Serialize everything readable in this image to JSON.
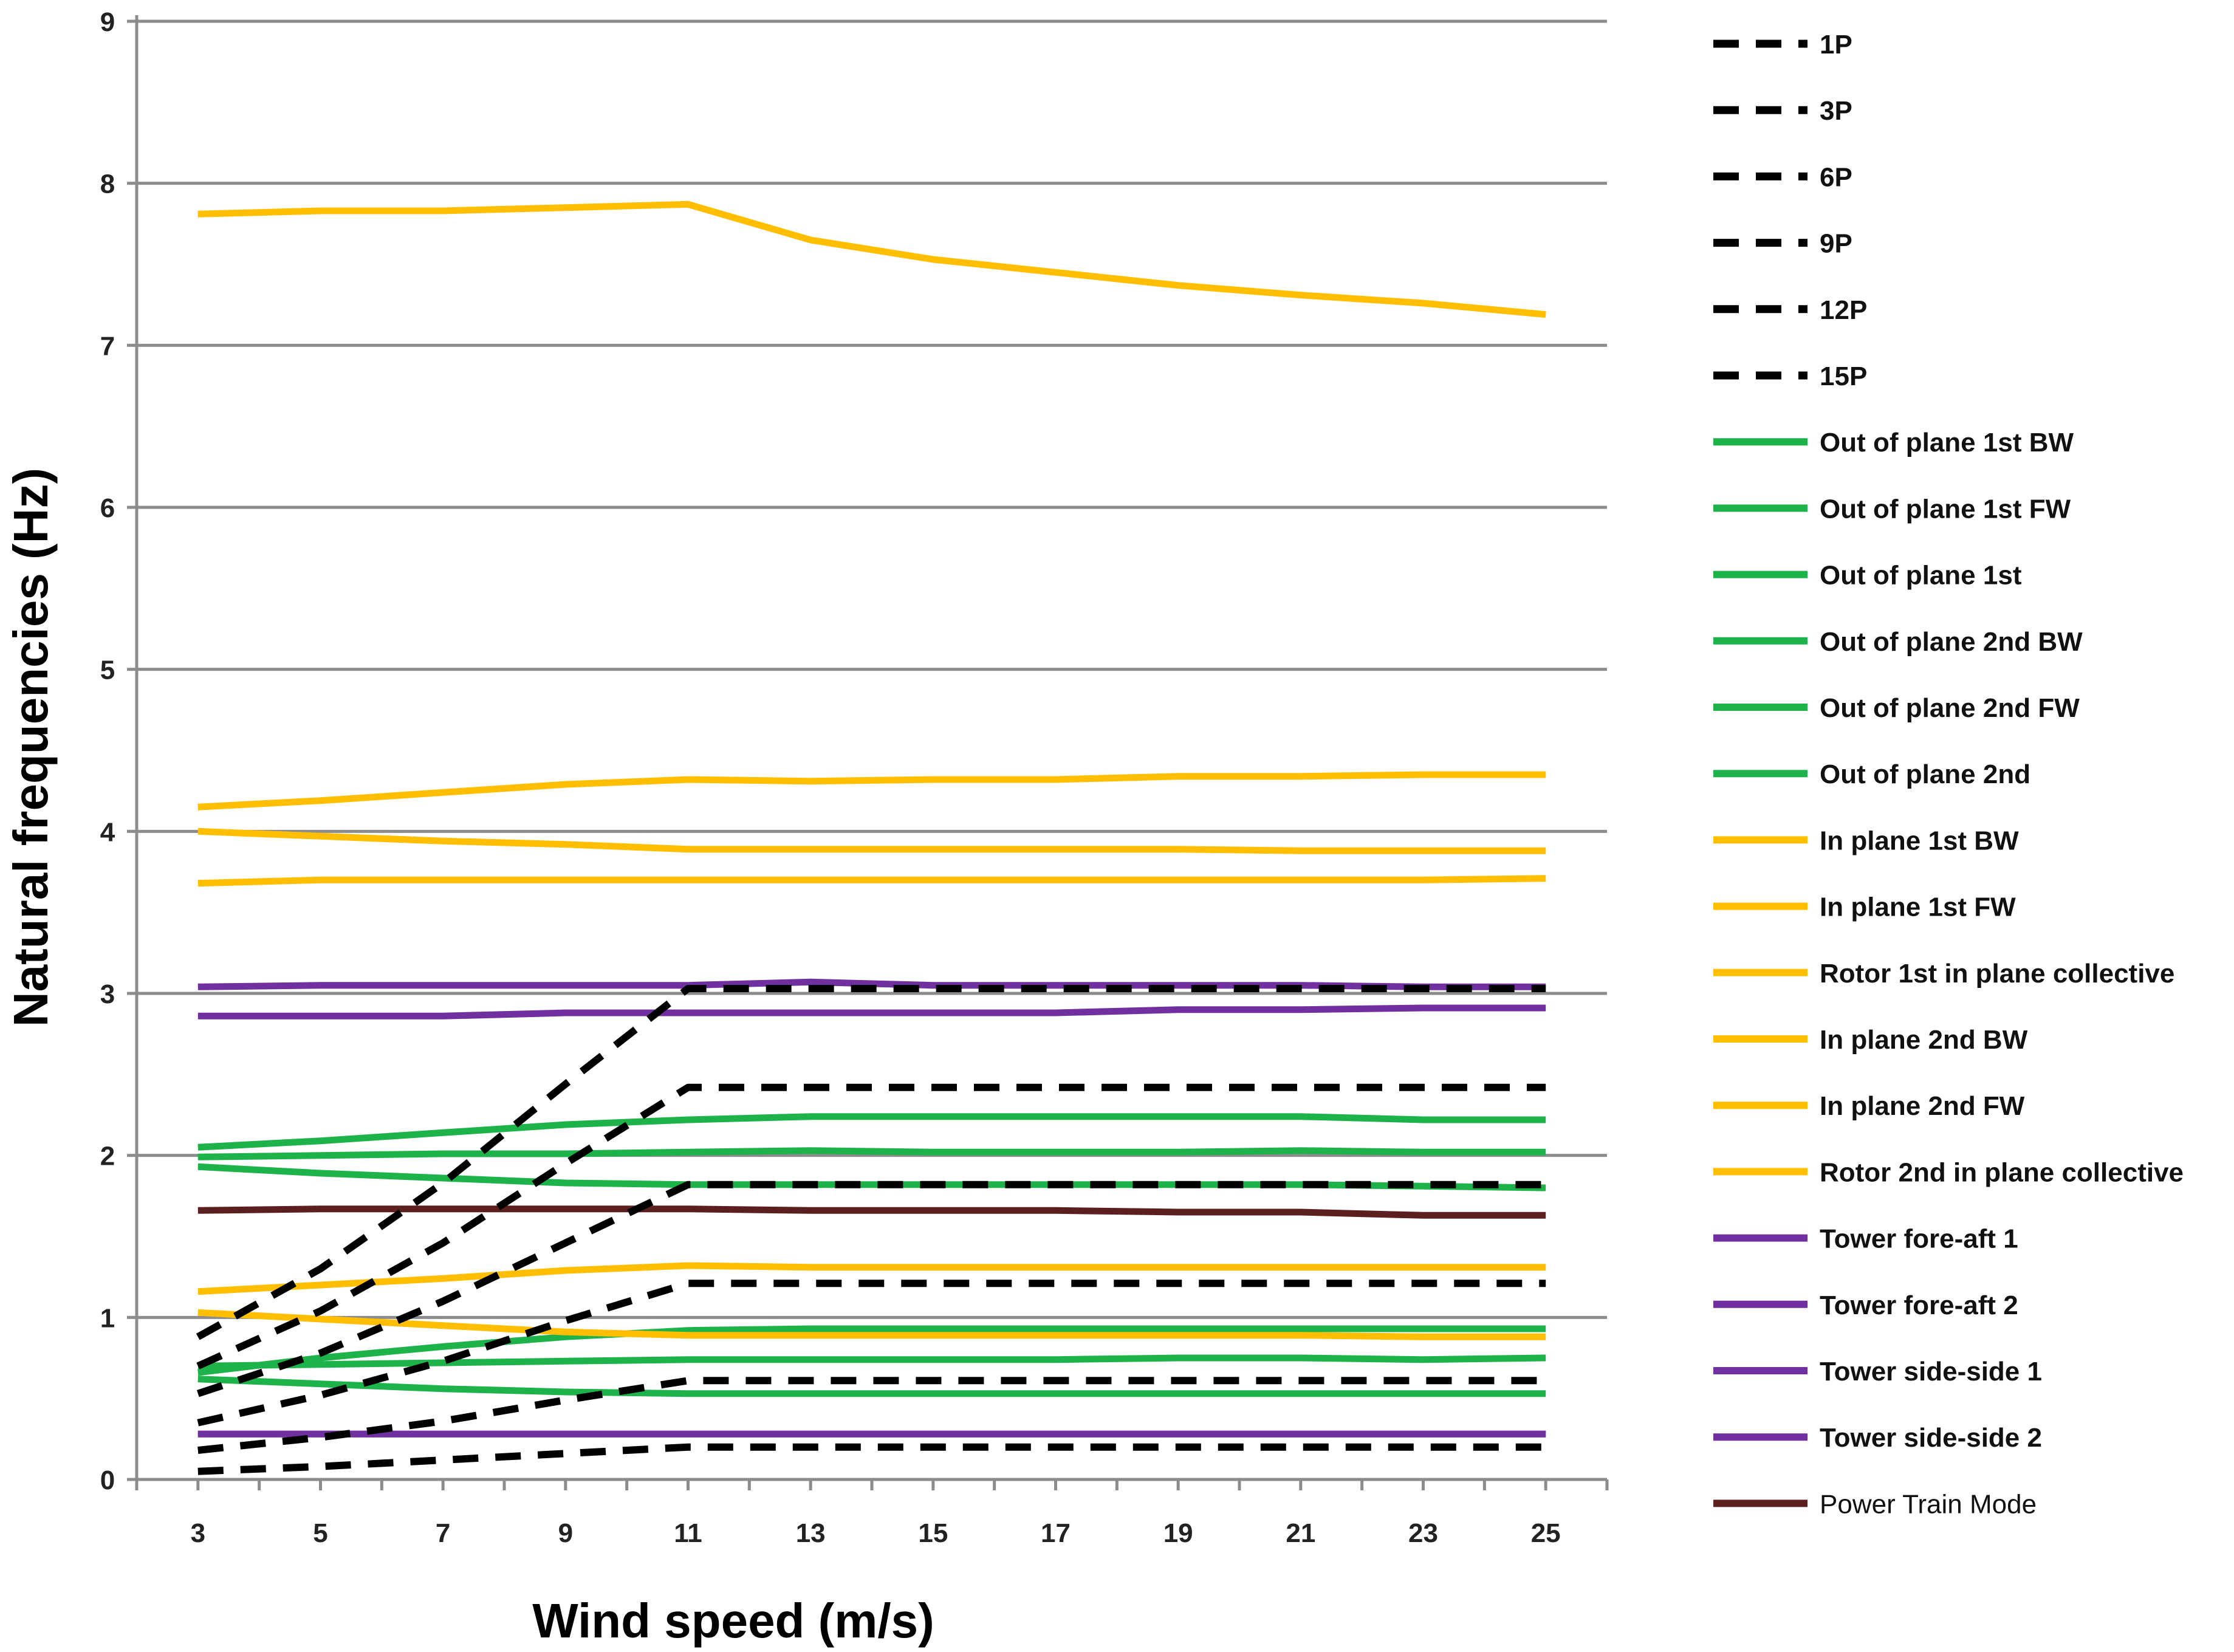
{
  "chart_data": {
    "type": "line",
    "title": "",
    "xlabel": "Wind speed (m/s)",
    "ylabel": "Natural frequencies (Hz)",
    "x": [
      3,
      5,
      7,
      9,
      11,
      13,
      15,
      17,
      19,
      21,
      23,
      25
    ],
    "x_ticks": [
      "3",
      "5",
      "7",
      "9",
      "11",
      "13",
      "15",
      "17",
      "19",
      "21",
      "23",
      "25"
    ],
    "ylim": [
      0,
      9
    ],
    "y_ticks": [
      "0",
      "1",
      "2",
      "3",
      "4",
      "5",
      "6",
      "7",
      "8",
      "9"
    ],
    "grid": "horizontal",
    "legend_position": "right",
    "series": [
      {
        "name": "1P",
        "color": "#000000",
        "dash": true,
        "values": [
          0.05,
          0.08,
          0.12,
          0.16,
          0.2,
          0.2,
          0.2,
          0.2,
          0.2,
          0.2,
          0.2,
          0.2
        ]
      },
      {
        "name": "3P",
        "color": "#000000",
        "dash": true,
        "values": [
          0.18,
          0.26,
          0.36,
          0.49,
          0.61,
          0.61,
          0.61,
          0.61,
          0.61,
          0.61,
          0.61,
          0.61
        ]
      },
      {
        "name": "6P",
        "color": "#000000",
        "dash": true,
        "values": [
          0.35,
          0.52,
          0.73,
          0.98,
          1.21,
          1.21,
          1.21,
          1.21,
          1.21,
          1.21,
          1.21,
          1.21
        ]
      },
      {
        "name": "9P",
        "color": "#000000",
        "dash": true,
        "values": [
          0.53,
          0.78,
          1.1,
          1.46,
          1.82,
          1.82,
          1.82,
          1.82,
          1.82,
          1.82,
          1.82,
          1.82
        ]
      },
      {
        "name": "12P",
        "color": "#000000",
        "dash": true,
        "values": [
          0.7,
          1.04,
          1.46,
          1.95,
          2.42,
          2.42,
          2.42,
          2.42,
          2.42,
          2.42,
          2.42,
          2.42
        ]
      },
      {
        "name": "15P",
        "color": "#000000",
        "dash": true,
        "values": [
          0.88,
          1.3,
          1.83,
          2.44,
          3.03,
          3.03,
          3.03,
          3.03,
          3.03,
          3.03,
          3.03,
          3.03
        ]
      },
      {
        "name": "Out of plane 1st BW",
        "color": "#1db34a",
        "dash": false,
        "values": [
          0.62,
          0.59,
          0.56,
          0.54,
          0.53,
          0.53,
          0.53,
          0.53,
          0.53,
          0.53,
          0.53,
          0.53
        ]
      },
      {
        "name": "Out of plane 1st FW",
        "color": "#1db34a",
        "dash": false,
        "values": [
          0.66,
          0.75,
          0.82,
          0.88,
          0.92,
          0.93,
          0.93,
          0.93,
          0.93,
          0.93,
          0.93,
          0.93
        ]
      },
      {
        "name": "Out of plane 1st",
        "color": "#1db34a",
        "dash": false,
        "values": [
          0.7,
          0.71,
          0.72,
          0.73,
          0.74,
          0.74,
          0.74,
          0.74,
          0.75,
          0.75,
          0.74,
          0.75
        ]
      },
      {
        "name": "Out of plane 2nd BW",
        "color": "#1db34a",
        "dash": false,
        "values": [
          1.93,
          1.89,
          1.86,
          1.83,
          1.82,
          1.82,
          1.82,
          1.82,
          1.82,
          1.82,
          1.81,
          1.8
        ]
      },
      {
        "name": "Out of plane 2nd FW",
        "color": "#1db34a",
        "dash": false,
        "values": [
          2.05,
          2.09,
          2.14,
          2.19,
          2.22,
          2.24,
          2.24,
          2.24,
          2.24,
          2.24,
          2.22,
          2.22
        ]
      },
      {
        "name": "Out of plane 2nd",
        "color": "#1db34a",
        "dash": false,
        "values": [
          1.99,
          2.0,
          2.01,
          2.01,
          2.02,
          2.03,
          2.02,
          2.02,
          2.02,
          2.03,
          2.02,
          2.02
        ]
      },
      {
        "name": "In plane 1st BW",
        "color": "#ffbf00",
        "dash": false,
        "values": [
          3.68,
          3.7,
          3.7,
          3.7,
          3.7,
          3.7,
          3.7,
          3.7,
          3.7,
          3.7,
          3.7,
          3.71
        ]
      },
      {
        "name": "In plane 1st FW",
        "color": "#ffbf00",
        "dash": false,
        "values": [
          4.15,
          4.19,
          4.24,
          4.29,
          4.32,
          4.31,
          4.32,
          4.32,
          4.34,
          4.34,
          4.35,
          4.35
        ]
      },
      {
        "name": "Rotor 1st in plane collective",
        "color": "#ffbf00",
        "dash": false,
        "values": [
          4.0,
          3.97,
          3.94,
          3.92,
          3.89,
          3.89,
          3.89,
          3.89,
          3.89,
          3.88,
          3.88,
          3.88
        ]
      },
      {
        "name": "In plane 2nd BW",
        "color": "#ffbf00",
        "dash": false,
        "values": [
          1.03,
          0.99,
          0.95,
          0.91,
          0.89,
          0.89,
          0.89,
          0.89,
          0.89,
          0.89,
          0.88,
          0.88
        ]
      },
      {
        "name": "In plane 2nd FW",
        "color": "#ffbf00",
        "dash": false,
        "values": [
          1.16,
          1.2,
          1.24,
          1.29,
          1.32,
          1.31,
          1.31,
          1.31,
          1.31,
          1.31,
          1.31,
          1.31
        ]
      },
      {
        "name": "Rotor 2nd in plane collective",
        "color": "#ffbf00",
        "dash": false,
        "values": [
          7.81,
          7.83,
          7.83,
          7.85,
          7.87,
          7.65,
          7.53,
          7.45,
          7.37,
          7.31,
          7.26,
          7.19
        ]
      },
      {
        "name": "Tower fore-aft 1",
        "color": "#7030a0",
        "dash": false,
        "values": [
          0.28,
          0.28,
          0.28,
          0.28,
          0.28,
          0.28,
          0.28,
          0.28,
          0.28,
          0.28,
          0.28,
          0.28
        ]
      },
      {
        "name": "Tower fore-aft 2",
        "color": "#7030a0",
        "dash": false,
        "values": [
          2.86,
          2.86,
          2.86,
          2.88,
          2.88,
          2.88,
          2.88,
          2.88,
          2.9,
          2.9,
          2.91,
          2.91
        ]
      },
      {
        "name": "Tower side-side 1",
        "color": "#7030a0",
        "dash": false,
        "values": [
          0.28,
          0.28,
          0.28,
          0.28,
          0.28,
          0.28,
          0.28,
          0.28,
          0.28,
          0.28,
          0.28,
          0.28
        ]
      },
      {
        "name": "Tower side-side 2",
        "color": "#7030a0",
        "dash": false,
        "values": [
          3.04,
          3.05,
          3.05,
          3.05,
          3.05,
          3.07,
          3.05,
          3.05,
          3.05,
          3.05,
          3.04,
          3.04
        ]
      },
      {
        "name": "Power Train Mode",
        "color": "#5b1f1f",
        "dash": false,
        "plain_label": true,
        "values": [
          1.66,
          1.67,
          1.67,
          1.67,
          1.67,
          1.66,
          1.66,
          1.66,
          1.65,
          1.65,
          1.63,
          1.63
        ]
      }
    ]
  }
}
